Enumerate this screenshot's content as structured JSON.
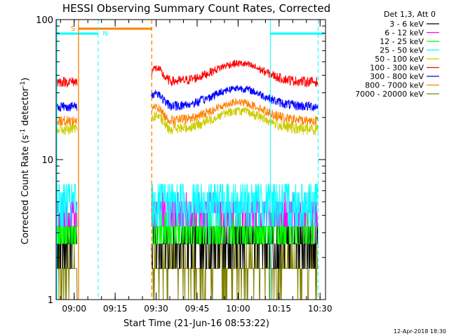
{
  "chart_data": {
    "type": "line",
    "title": "HESSI Observing Summary Count Rates, Corrected",
    "xlabel": "Start Time (21-Jun-16 08:53:22)",
    "ylabel_main": "Corrected Count Rate (s",
    "ylabel_sup1": "-1",
    "ylabel_mid": " detector",
    "ylabel_sup2": "-1",
    "ylabel_end": ")",
    "yscale": "log",
    "ylim": [
      1,
      100
    ],
    "xlim_minutes": [
      53.4,
      152.0
    ],
    "y_ticks": [
      {
        "value": 1,
        "label": "1"
      },
      {
        "value": 10,
        "label": "10"
      },
      {
        "value": 100,
        "label": "100"
      }
    ],
    "x_ticks": [
      {
        "minute": 60,
        "label": "09:00"
      },
      {
        "minute": 75,
        "label": "09:15"
      },
      {
        "minute": 90,
        "label": "09:30"
      },
      {
        "minute": 105,
        "label": "09:45"
      },
      {
        "minute": 120,
        "label": "10:00"
      },
      {
        "minute": 135,
        "label": "10:15"
      },
      {
        "minute": 150,
        "label": "10:30"
      }
    ],
    "legend_header": "Det 1,3, Att 0",
    "legend_position": "right",
    "series": [
      {
        "name": "3 - 6 keV",
        "color": "#000000",
        "level": 2.6,
        "spread": 0.9,
        "quantized": true
      },
      {
        "name": "6 - 12 keV",
        "color": "#ff00ff",
        "level": 4.3,
        "spread": 1.3,
        "quantized": true
      },
      {
        "name": "12 - 25 keV",
        "color": "#00ff00",
        "level": 3.2,
        "spread": 1.1,
        "quantized": true
      },
      {
        "name": "25 - 50 keV",
        "color": "#00ffff",
        "level": 4.9,
        "spread": 2.0,
        "quantized": true
      },
      {
        "name": "50 - 100 keV",
        "color": "#cccc00",
        "level": 16.5,
        "spread": 1.6,
        "quantized": false
      },
      {
        "name": "100 - 300 keV",
        "color": "#ff0000",
        "level": 36,
        "spread": 3.0,
        "quantized": false
      },
      {
        "name": "300 - 800 keV",
        "color": "#0000ff",
        "level": 24,
        "spread": 2.0,
        "quantized": false
      },
      {
        "name": "800 - 7000 keV",
        "color": "#ff7f00",
        "level": 19,
        "spread": 1.6,
        "quantized": false
      },
      {
        "name": "7000 - 20000 keV",
        "color": "#808000",
        "level": 1.7,
        "spread": 0.6,
        "quantized": true
      }
    ],
    "data_segments": [
      {
        "start": 53.4,
        "end": 61.2
      },
      {
        "start": 88.3,
        "end": 149.2
      }
    ],
    "markers": [
      {
        "label": "S",
        "color": "#ff7f00"
      },
      {
        "label": "N",
        "color": "#00ffff"
      }
    ],
    "footer_date": "12-Apr-2018 18:30"
  }
}
